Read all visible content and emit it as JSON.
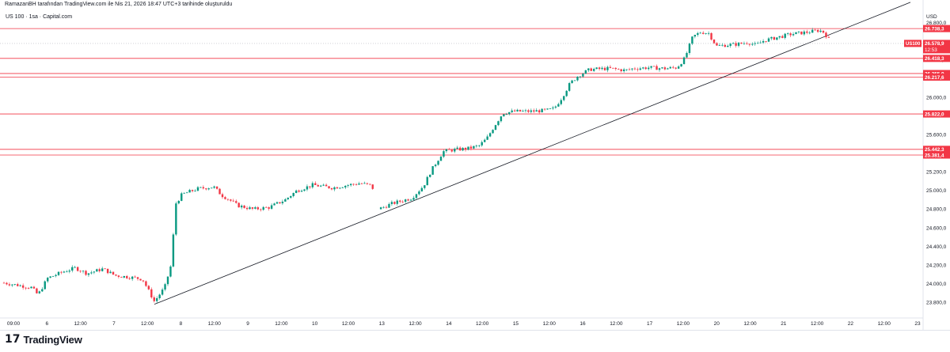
{
  "header": {
    "published_line": "RamazanBH tarafından TradingView.com ile Nis 21, 2026 18:47 UTC+3 tarihinde oluşturuldu",
    "symbol_line": "US 100 · 1sa · Capital.com"
  },
  "footer": {
    "logo_text": "TradingView",
    "logo_mark": "17"
  },
  "colors": {
    "up": "#089981",
    "down": "#f23645",
    "level": "#f23645",
    "trendline": "#131722",
    "axis_text": "#131722",
    "grid": "#f0f3fa"
  },
  "chart_data": {
    "type": "candlestick",
    "currency": "USD",
    "symbol_badge": "US100",
    "current_price": "26.578,9",
    "countdown": "12:53",
    "ylim": [
      23650,
      26960
    ],
    "y_ticks": [
      23800,
      24000,
      24200,
      24400,
      24600,
      24800,
      25000,
      25200,
      25400,
      25600,
      26000,
      26400,
      26800
    ],
    "y_tick_labels": [
      "23.800,0",
      "24.000,0",
      "24.200,0",
      "24.400,0",
      "24.600,0",
      "24.800,0",
      "25.000,0",
      "25.200,0",
      "25.400,0",
      "25.600,0",
      "26.000,0",
      "26.400,0",
      "26.800,0"
    ],
    "x_labels": [
      "09:00",
      "6",
      "12:00",
      "7",
      "12:00",
      "8",
      "12:00",
      "9",
      "12:00",
      "10",
      "12:00",
      "13",
      "12:00",
      "14",
      "12:00",
      "15",
      "12:00",
      "16",
      "12:00",
      "17",
      "12:00",
      "20",
      "12:00",
      "21",
      "12:00",
      "22",
      "12:00",
      "23"
    ],
    "levels": [
      {
        "value": 26738.3,
        "label": "26.738,3"
      },
      {
        "value": 26418.3,
        "label": "26.418,3"
      },
      {
        "value": 26255.9,
        "label": "26.255,9"
      },
      {
        "value": 26217.6,
        "label": "26.217,6"
      },
      {
        "value": 25822.0,
        "label": "25.822,0"
      },
      {
        "value": 25442.3,
        "label": "25.442,3"
      },
      {
        "value": 25381.4,
        "label": "25.381,4"
      }
    ],
    "trendline": {
      "from": [
        195,
        23780
      ],
      "to": [
        1150,
        27020
      ]
    },
    "path": [
      [
        5,
        24010
      ],
      [
        40,
        23960
      ],
      [
        48,
        23880
      ],
      [
        60,
        24060
      ],
      [
        80,
        24130
      ],
      [
        95,
        24170
      ],
      [
        110,
        24110
      ],
      [
        130,
        24160
      ],
      [
        145,
        24090
      ],
      [
        165,
        24070
      ],
      [
        180,
        24050
      ],
      [
        195,
        23810
      ],
      [
        208,
        23960
      ],
      [
        216,
        24200
      ],
      [
        222,
        24860
      ],
      [
        230,
        24960
      ],
      [
        250,
        25020
      ],
      [
        270,
        25040
      ],
      [
        280,
        24950
      ],
      [
        290,
        24900
      ],
      [
        300,
        24840
      ],
      [
        320,
        24800
      ],
      [
        340,
        24820
      ],
      [
        360,
        24900
      ],
      [
        375,
        25000
      ],
      [
        395,
        25060
      ],
      [
        420,
        25030
      ],
      [
        440,
        25060
      ],
      [
        455,
        25080
      ],
      [
        470,
        25050
      ],
      [
        478,
        24800
      ],
      [
        495,
        24860
      ],
      [
        520,
        24920
      ],
      [
        535,
        25050
      ],
      [
        545,
        25220
      ],
      [
        560,
        25420
      ],
      [
        575,
        25440
      ],
      [
        590,
        25450
      ],
      [
        605,
        25480
      ],
      [
        615,
        25560
      ],
      [
        625,
        25700
      ],
      [
        635,
        25830
      ],
      [
        650,
        25850
      ],
      [
        670,
        25850
      ],
      [
        690,
        25860
      ],
      [
        700,
        25880
      ],
      [
        710,
        26000
      ],
      [
        720,
        26150
      ],
      [
        730,
        26230
      ],
      [
        745,
        26300
      ],
      [
        770,
        26310
      ],
      [
        790,
        26290
      ],
      [
        800,
        26310
      ],
      [
        820,
        26320
      ],
      [
        840,
        26310
      ],
      [
        855,
        26320
      ],
      [
        865,
        26420
      ],
      [
        875,
        26650
      ],
      [
        885,
        26700
      ],
      [
        895,
        26690
      ],
      [
        905,
        26550
      ],
      [
        915,
        26560
      ],
      [
        930,
        26570
      ],
      [
        945,
        26590
      ],
      [
        955,
        26560
      ],
      [
        965,
        26610
      ],
      [
        980,
        26640
      ],
      [
        1000,
        26680
      ],
      [
        1020,
        26700
      ],
      [
        1035,
        26720
      ],
      [
        1040,
        26700
      ],
      [
        1046,
        26640
      ],
      [
        1050,
        26579
      ]
    ]
  }
}
